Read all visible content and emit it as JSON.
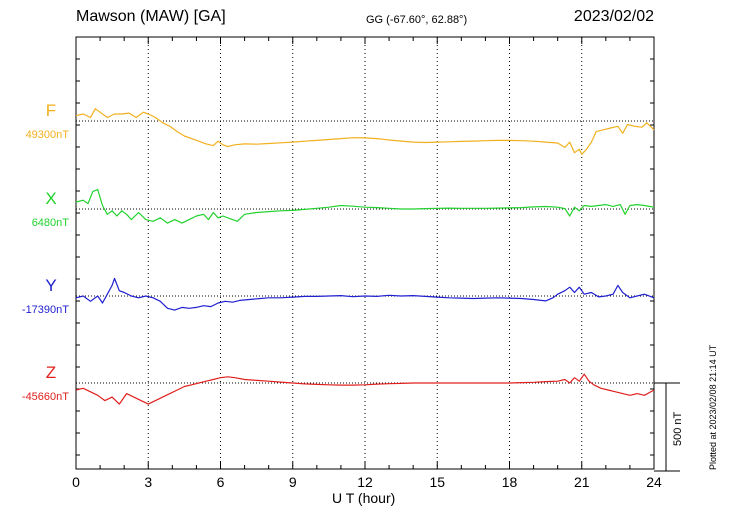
{
  "header": {
    "station": "Mawson (MAW)  [GA]",
    "coords": "GG (-67.60°,  62.88°)",
    "date": "2023/02/02"
  },
  "footer": {
    "plotted": "Plotted at 2023/02/08 21:14 UT",
    "scale_bar_label": "500 nT"
  },
  "chart_data": {
    "type": "line",
    "xlabel": "U T (hour)",
    "xlim": [
      0,
      24
    ],
    "xticks": [
      0,
      3,
      6,
      9,
      12,
      15,
      18,
      21,
      24
    ],
    "grid": true,
    "scale_bar_nT": 500,
    "series": [
      {
        "name": "F",
        "baseline_label": "49300nT",
        "baseline": 49300,
        "color": "#f2b01e",
        "points": [
          [
            0,
            49330
          ],
          [
            0.3,
            49340
          ],
          [
            0.6,
            49320
          ],
          [
            0.8,
            49370
          ],
          [
            1.0,
            49350
          ],
          [
            1.3,
            49320
          ],
          [
            1.6,
            49340
          ],
          [
            1.9,
            49340
          ],
          [
            2.2,
            49345
          ],
          [
            2.5,
            49320
          ],
          [
            2.8,
            49350
          ],
          [
            3.0,
            49340
          ],
          [
            3.3,
            49320
          ],
          [
            3.6,
            49290
          ],
          [
            3.9,
            49270
          ],
          [
            4.2,
            49240
          ],
          [
            4.5,
            49215
          ],
          [
            4.8,
            49200
          ],
          [
            5.1,
            49185
          ],
          [
            5.4,
            49170
          ],
          [
            5.7,
            49160
          ],
          [
            5.9,
            49185
          ],
          [
            6.1,
            49165
          ],
          [
            6.3,
            49155
          ],
          [
            6.6,
            49165
          ],
          [
            7.0,
            49170
          ],
          [
            7.5,
            49168
          ],
          [
            8.0,
            49172
          ],
          [
            8.5,
            49176
          ],
          [
            9.0,
            49180
          ],
          [
            9.5,
            49185
          ],
          [
            10.0,
            49190
          ],
          [
            10.5,
            49195
          ],
          [
            11.0,
            49200
          ],
          [
            11.5,
            49205
          ],
          [
            12.0,
            49204
          ],
          [
            12.5,
            49200
          ],
          [
            13.0,
            49192
          ],
          [
            13.5,
            49186
          ],
          [
            14.0,
            49180
          ],
          [
            14.5,
            49178
          ],
          [
            15.0,
            49180
          ],
          [
            15.5,
            49182
          ],
          [
            16.0,
            49184
          ],
          [
            16.5,
            49186
          ],
          [
            17.0,
            49188
          ],
          [
            17.5,
            49190
          ],
          [
            18.0,
            49190
          ],
          [
            18.5,
            49188
          ],
          [
            19.0,
            49185
          ],
          [
            19.5,
            49180
          ],
          [
            20.0,
            49175
          ],
          [
            20.3,
            49150
          ],
          [
            20.5,
            49180
          ],
          [
            20.7,
            49120
          ],
          [
            20.9,
            49140
          ],
          [
            21.0,
            49110
          ],
          [
            21.2,
            49140
          ],
          [
            21.4,
            49180
          ],
          [
            21.6,
            49240
          ],
          [
            21.9,
            49250
          ],
          [
            22.2,
            49260
          ],
          [
            22.5,
            49270
          ],
          [
            22.7,
            49230
          ],
          [
            22.9,
            49280
          ],
          [
            23.2,
            49270
          ],
          [
            23.5,
            49265
          ],
          [
            23.7,
            49290
          ],
          [
            24.0,
            49250
          ]
        ]
      },
      {
        "name": "X",
        "baseline_label": "6480nT",
        "baseline": 6480,
        "color": "#22d22e",
        "points": [
          [
            0,
            6520
          ],
          [
            0.3,
            6530
          ],
          [
            0.5,
            6510
          ],
          [
            0.7,
            6580
          ],
          [
            0.9,
            6590
          ],
          [
            1.1,
            6500
          ],
          [
            1.3,
            6450
          ],
          [
            1.5,
            6470
          ],
          [
            1.7,
            6440
          ],
          [
            1.9,
            6470
          ],
          [
            2.1,
            6450
          ],
          [
            2.3,
            6420
          ],
          [
            2.6,
            6460
          ],
          [
            2.9,
            6420
          ],
          [
            3.2,
            6410
          ],
          [
            3.5,
            6430
          ],
          [
            3.8,
            6400
          ],
          [
            4.1,
            6420
          ],
          [
            4.4,
            6400
          ],
          [
            4.7,
            6420
          ],
          [
            5.0,
            6440
          ],
          [
            5.3,
            6450
          ],
          [
            5.5,
            6420
          ],
          [
            5.7,
            6460
          ],
          [
            5.9,
            6430
          ],
          [
            6.1,
            6440
          ],
          [
            6.4,
            6425
          ],
          [
            6.7,
            6410
          ],
          [
            7.0,
            6450
          ],
          [
            7.5,
            6460
          ],
          [
            8.0,
            6465
          ],
          [
            8.5,
            6470
          ],
          [
            9.0,
            6472
          ],
          [
            9.5,
            6478
          ],
          [
            10.0,
            6484
          ],
          [
            10.5,
            6490
          ],
          [
            11.0,
            6500
          ],
          [
            11.5,
            6496
          ],
          [
            12.0,
            6490
          ],
          [
            12.5,
            6488
          ],
          [
            13.0,
            6484
          ],
          [
            13.5,
            6480
          ],
          [
            14.0,
            6480
          ],
          [
            14.5,
            6482
          ],
          [
            15.0,
            6484
          ],
          [
            15.5,
            6485
          ],
          [
            16.0,
            6484
          ],
          [
            16.5,
            6484
          ],
          [
            17.0,
            6484
          ],
          [
            17.5,
            6485
          ],
          [
            18.0,
            6486
          ],
          [
            18.5,
            6488
          ],
          [
            19.0,
            6492
          ],
          [
            19.5,
            6494
          ],
          [
            20.0,
            6490
          ],
          [
            20.3,
            6482
          ],
          [
            20.5,
            6440
          ],
          [
            20.7,
            6490
          ],
          [
            20.9,
            6470
          ],
          [
            21.1,
            6500
          ],
          [
            21.4,
            6495
          ],
          [
            21.7,
            6500
          ],
          [
            22.0,
            6505
          ],
          [
            22.3,
            6495
          ],
          [
            22.6,
            6505
          ],
          [
            22.8,
            6450
          ],
          [
            23.0,
            6500
          ],
          [
            23.3,
            6505
          ],
          [
            23.6,
            6500
          ],
          [
            24.0,
            6490
          ]
        ]
      },
      {
        "name": "Y",
        "baseline_label": "-17390nT",
        "baseline": -17390,
        "color": "#1f1fd0",
        "points": [
          [
            0,
            -17400
          ],
          [
            0.3,
            -17390
          ],
          [
            0.6,
            -17420
          ],
          [
            0.9,
            -17390
          ],
          [
            1.1,
            -17430
          ],
          [
            1.3,
            -17380
          ],
          [
            1.5,
            -17330
          ],
          [
            1.6,
            -17290
          ],
          [
            1.8,
            -17360
          ],
          [
            2.0,
            -17370
          ],
          [
            2.3,
            -17390
          ],
          [
            2.6,
            -17400
          ],
          [
            2.9,
            -17390
          ],
          [
            3.2,
            -17400
          ],
          [
            3.5,
            -17420
          ],
          [
            3.8,
            -17460
          ],
          [
            4.1,
            -17470
          ],
          [
            4.4,
            -17455
          ],
          [
            4.7,
            -17460
          ],
          [
            5.0,
            -17455
          ],
          [
            5.3,
            -17445
          ],
          [
            5.6,
            -17450
          ],
          [
            5.9,
            -17430
          ],
          [
            6.2,
            -17420
          ],
          [
            6.5,
            -17425
          ],
          [
            6.8,
            -17415
          ],
          [
            7.2,
            -17410
          ],
          [
            7.6,
            -17405
          ],
          [
            8.0,
            -17400
          ],
          [
            8.5,
            -17400
          ],
          [
            9.0,
            -17396
          ],
          [
            9.5,
            -17392
          ],
          [
            10.0,
            -17392
          ],
          [
            10.5,
            -17390
          ],
          [
            11.0,
            -17388
          ],
          [
            11.5,
            -17394
          ],
          [
            12.0,
            -17390
          ],
          [
            12.5,
            -17392
          ],
          [
            13.0,
            -17386
          ],
          [
            13.5,
            -17390
          ],
          [
            14.0,
            -17388
          ],
          [
            14.5,
            -17392
          ],
          [
            15.0,
            -17396
          ],
          [
            15.5,
            -17400
          ],
          [
            16.0,
            -17402
          ],
          [
            16.5,
            -17404
          ],
          [
            17.0,
            -17402
          ],
          [
            17.5,
            -17400
          ],
          [
            18.0,
            -17402
          ],
          [
            18.5,
            -17404
          ],
          [
            19.0,
            -17410
          ],
          [
            19.5,
            -17418
          ],
          [
            19.8,
            -17400
          ],
          [
            20.0,
            -17380
          ],
          [
            20.3,
            -17360
          ],
          [
            20.5,
            -17340
          ],
          [
            20.7,
            -17370
          ],
          [
            20.9,
            -17340
          ],
          [
            21.1,
            -17380
          ],
          [
            21.4,
            -17370
          ],
          [
            21.7,
            -17395
          ],
          [
            22.0,
            -17390
          ],
          [
            22.3,
            -17380
          ],
          [
            22.5,
            -17330
          ],
          [
            22.7,
            -17370
          ],
          [
            23.0,
            -17400
          ],
          [
            23.3,
            -17390
          ],
          [
            23.6,
            -17380
          ],
          [
            24.0,
            -17400
          ]
        ]
      },
      {
        "name": "Z",
        "baseline_label": "-45660nT",
        "baseline": -45660,
        "color": "#e0201e",
        "points": [
          [
            0,
            -45700
          ],
          [
            0.3,
            -45690
          ],
          [
            0.6,
            -45710
          ],
          [
            0.9,
            -45730
          ],
          [
            1.2,
            -45760
          ],
          [
            1.5,
            -45740
          ],
          [
            1.8,
            -45780
          ],
          [
            2.1,
            -45720
          ],
          [
            2.4,
            -45740
          ],
          [
            2.7,
            -45760
          ],
          [
            3.0,
            -45780
          ],
          [
            3.3,
            -45760
          ],
          [
            3.6,
            -45740
          ],
          [
            3.9,
            -45720
          ],
          [
            4.2,
            -45700
          ],
          [
            4.5,
            -45680
          ],
          [
            4.8,
            -45670
          ],
          [
            5.1,
            -45660
          ],
          [
            5.4,
            -45650
          ],
          [
            5.7,
            -45640
          ],
          [
            6.0,
            -45630
          ],
          [
            6.3,
            -45625
          ],
          [
            6.6,
            -45630
          ],
          [
            7.0,
            -45640
          ],
          [
            7.5,
            -45645
          ],
          [
            8.0,
            -45650
          ],
          [
            8.5,
            -45655
          ],
          [
            9.0,
            -45660
          ],
          [
            9.5,
            -45665
          ],
          [
            10.0,
            -45668
          ],
          [
            10.5,
            -45670
          ],
          [
            11.0,
            -45672
          ],
          [
            11.5,
            -45672
          ],
          [
            12.0,
            -45670
          ],
          [
            12.5,
            -45666
          ],
          [
            13.0,
            -45664
          ],
          [
            13.5,
            -45662
          ],
          [
            14.0,
            -45660
          ],
          [
            14.5,
            -45660
          ],
          [
            15.0,
            -45660
          ],
          [
            15.5,
            -45660
          ],
          [
            16.0,
            -45660
          ],
          [
            16.5,
            -45660
          ],
          [
            17.0,
            -45660
          ],
          [
            17.5,
            -45660
          ],
          [
            18.0,
            -45660
          ],
          [
            18.5,
            -45658
          ],
          [
            19.0,
            -45656
          ],
          [
            19.5,
            -45652
          ],
          [
            20.0,
            -45650
          ],
          [
            20.3,
            -45640
          ],
          [
            20.5,
            -45660
          ],
          [
            20.7,
            -45630
          ],
          [
            20.9,
            -45650
          ],
          [
            21.1,
            -45610
          ],
          [
            21.3,
            -45650
          ],
          [
            21.5,
            -45670
          ],
          [
            21.8,
            -45690
          ],
          [
            22.1,
            -45700
          ],
          [
            22.4,
            -45710
          ],
          [
            22.7,
            -45720
          ],
          [
            23.0,
            -45730
          ],
          [
            23.3,
            -45720
          ],
          [
            23.6,
            -45730
          ],
          [
            24.0,
            -45700
          ]
        ]
      }
    ]
  }
}
